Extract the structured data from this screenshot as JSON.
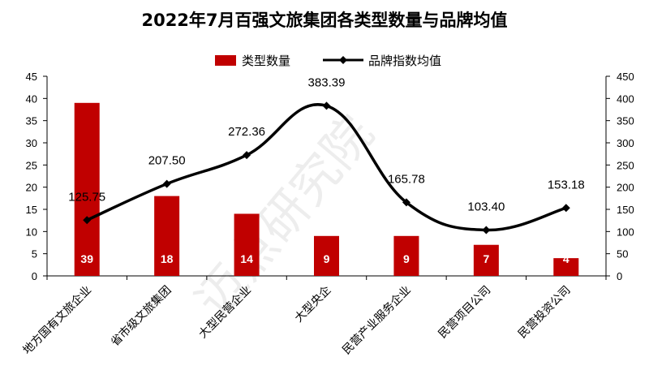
{
  "chart_data": {
    "type": "bar+line",
    "title": "2022年7月百强文旅集团各类型数量与品牌均值",
    "categories": [
      "地方国有文旅企业",
      "省市级文旅集团",
      "大型民营企业",
      "大型央企",
      "民营产业服务企业",
      "民营项目公司",
      "民营投资公司"
    ],
    "series": [
      {
        "name": "类型数量",
        "type": "bar",
        "axis": "left",
        "values": [
          39,
          18,
          14,
          9,
          9,
          7,
          4
        ],
        "labels": [
          "39",
          "18",
          "14",
          "9",
          "9",
          "7",
          "4"
        ],
        "color": "#C00000"
      },
      {
        "name": "品牌指数均值",
        "type": "line",
        "axis": "right",
        "values": [
          125.75,
          207.5,
          272.36,
          383.39,
          165.78,
          103.4,
          153.18
        ],
        "labels": [
          "125.75",
          "207.50",
          "272.36",
          "383.39",
          "165.78",
          "103.40",
          "153.18"
        ],
        "color": "#000000",
        "marker": "diamond",
        "smooth": true
      }
    ],
    "y_left": {
      "min": 0,
      "max": 45,
      "ticks": [
        "0",
        "5",
        "10",
        "15",
        "20",
        "25",
        "30",
        "35",
        "40",
        "45"
      ]
    },
    "y_right": {
      "min": 0,
      "max": 450,
      "ticks": [
        "0",
        "50",
        "100",
        "150",
        "200",
        "250",
        "300",
        "350",
        "400",
        "450"
      ]
    },
    "legend_position": "top",
    "grid": false,
    "watermark": "迈点研究院"
  }
}
